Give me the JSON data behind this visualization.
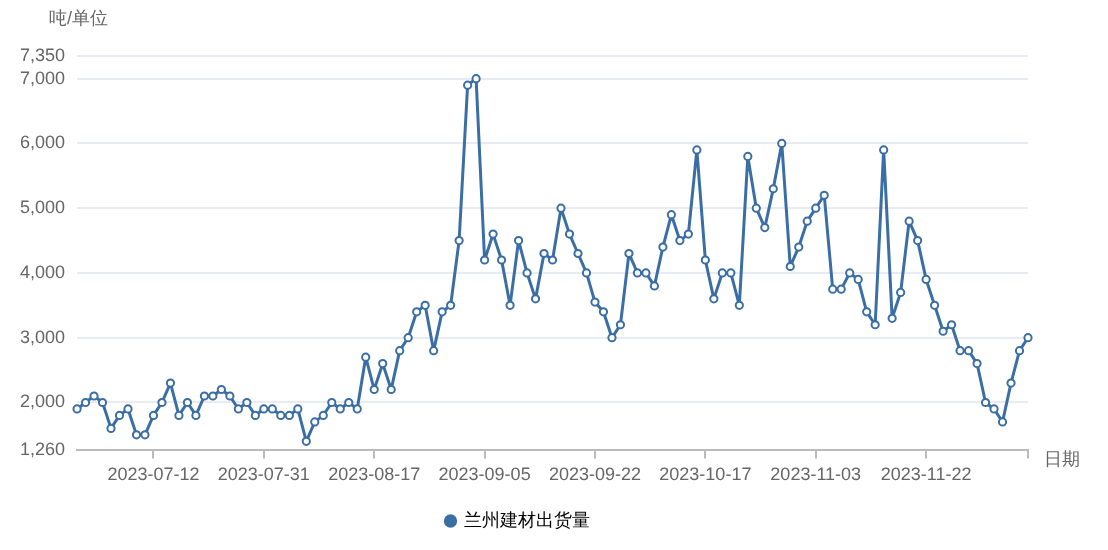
{
  "chart_data": {
    "type": "line",
    "ylabel": "吨/单位",
    "xlabel": "日期",
    "categories": [
      null,
      null,
      null,
      null,
      null,
      null,
      null,
      null,
      null,
      "2023-07-12",
      null,
      null,
      null,
      null,
      null,
      null,
      null,
      null,
      null,
      null,
      null,
      null,
      "2023-07-31",
      null,
      null,
      null,
      null,
      null,
      null,
      null,
      null,
      null,
      null,
      null,
      null,
      "2023-08-17",
      null,
      null,
      null,
      null,
      null,
      null,
      null,
      null,
      null,
      null,
      null,
      null,
      "2023-09-05",
      null,
      null,
      null,
      null,
      null,
      null,
      null,
      null,
      null,
      null,
      null,
      null,
      "2023-09-22",
      null,
      null,
      null,
      null,
      null,
      null,
      null,
      null,
      null,
      null,
      null,
      null,
      "2023-10-17",
      null,
      null,
      null,
      null,
      null,
      null,
      null,
      null,
      null,
      null,
      null,
      null,
      "2023-11-03",
      null,
      null,
      null,
      null,
      null,
      null,
      null,
      null,
      null,
      null,
      null,
      null,
      "2023-11-22",
      null,
      null,
      null,
      null,
      null,
      null,
      null,
      null,
      null,
      null,
      null,
      null
    ],
    "series": [
      {
        "name": "兰州建材出货量",
        "color": "#3a6ea5",
        "values": [
          1900,
          2000,
          2100,
          2000,
          1600,
          1800,
          1900,
          1500,
          1500,
          1800,
          2000,
          2300,
          1800,
          2000,
          1800,
          2100,
          2100,
          2200,
          2100,
          1900,
          2000,
          1800,
          1900,
          1900,
          1800,
          1800,
          1900,
          1400,
          1700,
          1800,
          2000,
          1900,
          2000,
          1900,
          2700,
          2200,
          2600,
          2200,
          2800,
          3000,
          3400,
          3500,
          2800,
          3400,
          3500,
          4500,
          6900,
          7000,
          4200,
          4600,
          4200,
          3500,
          4500,
          4000,
          3600,
          4300,
          4200,
          5000,
          4600,
          4300,
          4000,
          3550,
          3400,
          3000,
          3200,
          4300,
          4000,
          4000,
          3800,
          4400,
          4900,
          4500,
          4600,
          5900,
          4200,
          3600,
          4000,
          4000,
          3500,
          5800,
          5000,
          4700,
          5300,
          6000,
          4100,
          4400,
          4800,
          5000,
          5200,
          3750,
          3750,
          4000,
          3900,
          3400,
          3200,
          5900,
          3300,
          3700,
          4800,
          4500,
          3900,
          3500,
          3100,
          3200,
          2800,
          2800,
          2600,
          2000,
          1900,
          1700,
          2300,
          2800,
          3000
        ]
      }
    ],
    "ylim": [
      1260,
      7350
    ],
    "yticks": [
      {
        "value": 1260,
        "label": "1,260"
      },
      {
        "value": 2000,
        "label": "2,000"
      },
      {
        "value": 3000,
        "label": "3,000"
      },
      {
        "value": 4000,
        "label": "4,000"
      },
      {
        "value": 5000,
        "label": "5,000"
      },
      {
        "value": 6000,
        "label": "6,000"
      },
      {
        "value": 7000,
        "label": "7,000"
      },
      {
        "value": 7350,
        "label": "7,350"
      }
    ],
    "grid": "y",
    "legend": "bottom",
    "marker": "circle",
    "line_style": "solid"
  }
}
